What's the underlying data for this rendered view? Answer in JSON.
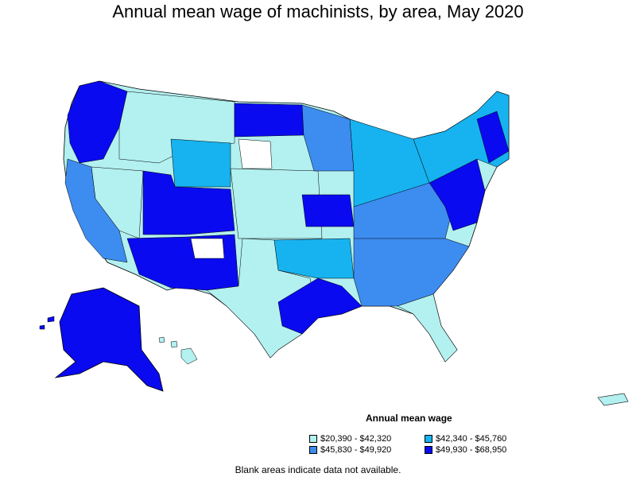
{
  "title": "Annual mean wage of machinists, by area, May 2020",
  "legend": {
    "title": "Annual mean wage",
    "items": [
      {
        "label": "$20,390 - $42,320",
        "color": "#b3f0f0"
      },
      {
        "label": "$42,340 - $45,760",
        "color": "#17b3f0"
      },
      {
        "label": "$45,830 - $49,920",
        "color": "#3d8cf0"
      },
      {
        "label": "$49,930 - $68,950",
        "color": "#0a0af0"
      }
    ]
  },
  "footnote": "Blank areas indicate data not available.",
  "colors": {
    "c1": "#b3f0f0",
    "c2": "#17b3f0",
    "c3": "#3d8cf0",
    "c4": "#0a0af0",
    "blank": "#ffffff"
  }
}
